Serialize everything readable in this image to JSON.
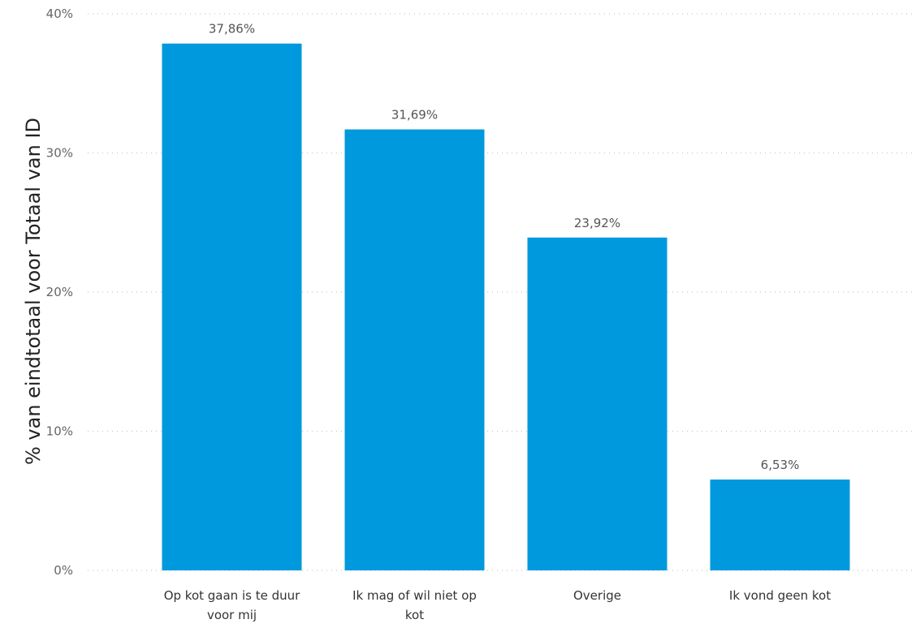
{
  "chart_data": {
    "type": "bar",
    "title": "",
    "xlabel": "",
    "ylabel": "% van eindtotaal voor Totaal van ID",
    "ylim": [
      0,
      40
    ],
    "yticks": [
      0,
      10,
      20,
      30,
      40
    ],
    "ytick_labels": [
      "0%",
      "10%",
      "20%",
      "30%",
      "40%"
    ],
    "grid": true,
    "legend": "none",
    "bar_color": "#0099dd",
    "categories": [
      [
        "Op kot gaan is te duur",
        "voor mij"
      ],
      [
        "Ik mag of wil niet op",
        "kot"
      ],
      [
        "Overige"
      ],
      [
        "Ik vond geen kot"
      ]
    ],
    "values": [
      37.86,
      31.69,
      23.92,
      6.53
    ],
    "value_labels": [
      "37,86%",
      "31,69%",
      "23,92%",
      "6,53%"
    ]
  }
}
